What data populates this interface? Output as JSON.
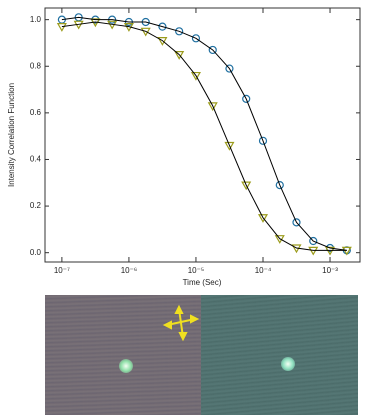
{
  "chart_data": {
    "type": "scatter",
    "y_label": "Intensity Correlation Function",
    "x_label": "Time (Sec)",
    "log_x": true,
    "x": [
      1e-07,
      1.78e-07,
      3.16e-07,
      5.62e-07,
      1e-06,
      1.78e-06,
      3.16e-06,
      5.62e-06,
      1e-05,
      1.78e-05,
      3.16e-05,
      5.62e-05,
      0.0001,
      0.000178,
      0.000316,
      0.000562,
      0.001,
      0.00178
    ],
    "series": [
      {
        "color": "#1f6fa0",
        "marker": "circle",
        "fit_color": "#000000",
        "values": [
          1.0,
          1.01,
          1.0,
          1.0,
          0.99,
          0.99,
          0.97,
          0.95,
          0.92,
          0.87,
          0.79,
          0.66,
          0.48,
          0.29,
          0.13,
          0.05,
          0.02,
          0.01
        ]
      },
      {
        "color": "#9c9c1c",
        "marker": "triangle",
        "fit_color": "#000000",
        "values": [
          0.97,
          0.98,
          0.99,
          0.98,
          0.97,
          0.95,
          0.91,
          0.85,
          0.76,
          0.63,
          0.46,
          0.29,
          0.15,
          0.06,
          0.02,
          0.01,
          0.01,
          0.01
        ]
      }
    ],
    "xlim": [
      5.6e-08,
      0.0028
    ],
    "xticks": [
      {
        "value": 1e-07,
        "label": "10⁻⁷"
      },
      {
        "value": 1e-06,
        "label": "10⁻⁶"
      },
      {
        "value": 1e-05,
        "label": "10⁻⁵"
      },
      {
        "value": 0.0001,
        "label": "10⁻⁴"
      },
      {
        "value": 0.001,
        "label": "10⁻³"
      }
    ],
    "ylim": [
      -0.04,
      1.05
    ],
    "yticks": [
      {
        "value": 0,
        "label": "0.0"
      },
      {
        "value": 0.2,
        "label": "0.2"
      },
      {
        "value": 0.4,
        "label": "0.4"
      },
      {
        "value": 0.6,
        "label": "0.6"
      },
      {
        "value": 0.8,
        "label": "0.8"
      },
      {
        "value": 1,
        "label": "1.0"
      }
    ]
  }
}
